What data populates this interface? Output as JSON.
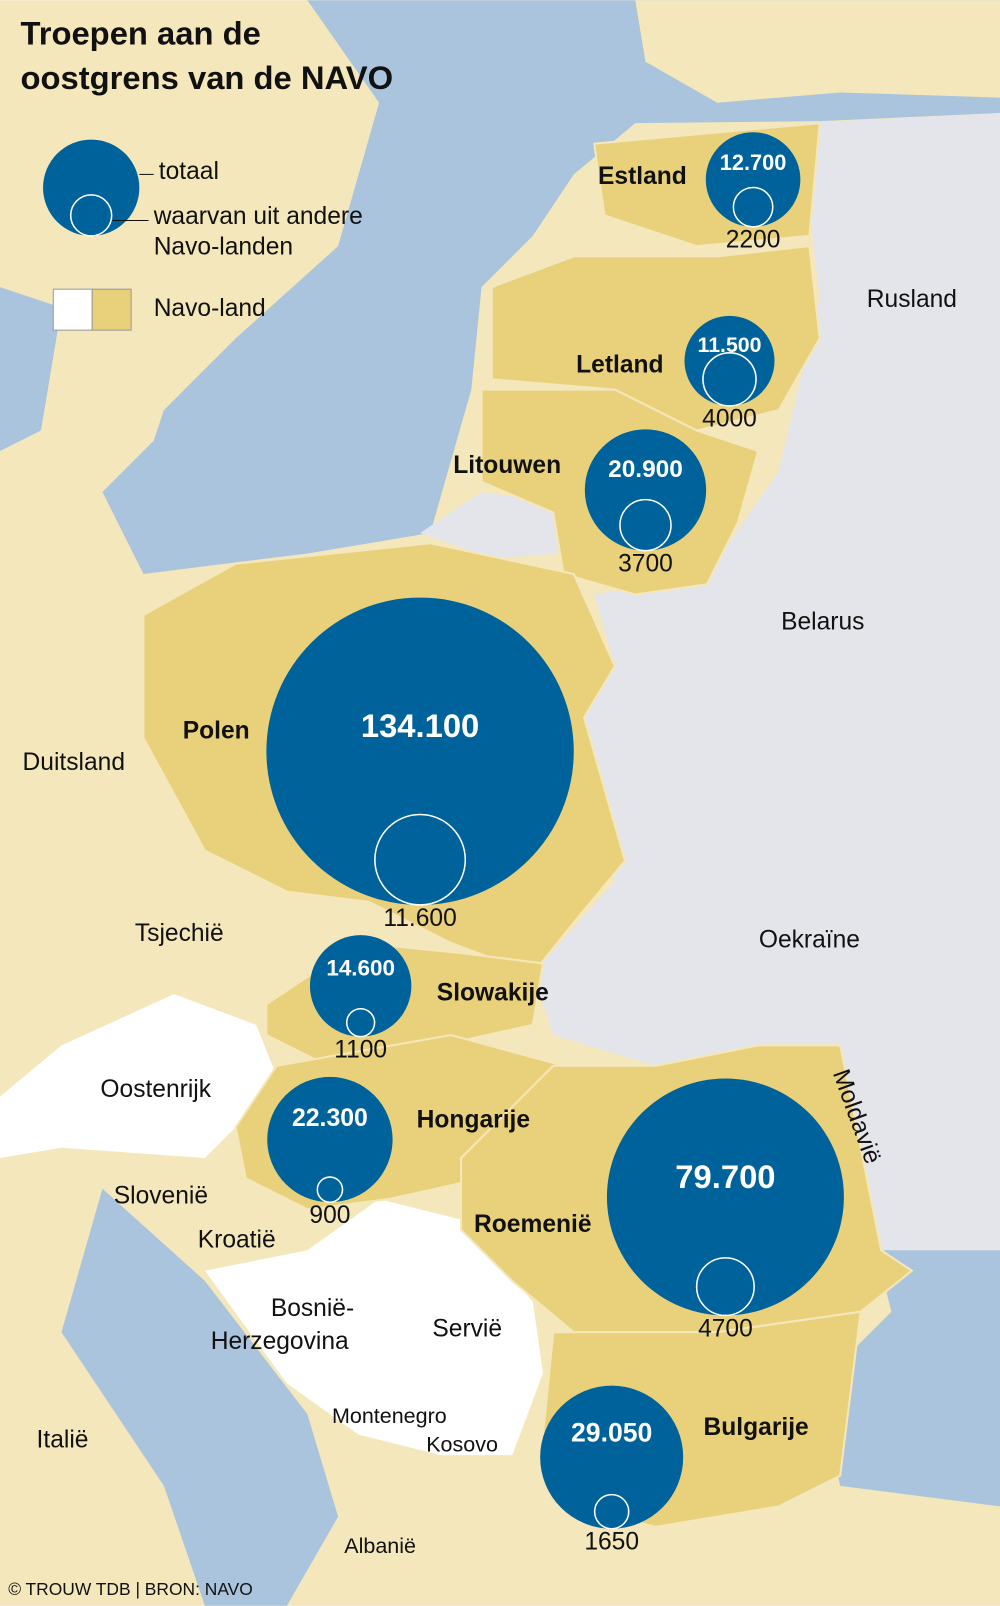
{
  "title": [
    "Troepen aan de",
    "oostgrens van de NAVO"
  ],
  "legend": {
    "total": "totaal",
    "other": [
      "waarvan uit andere",
      "Navo-landen"
    ],
    "member": "Navo-land"
  },
  "countries": [
    {
      "name": "Estland",
      "total": 12700,
      "total_label": "12.700",
      "other": 2200
    },
    {
      "name": "Letland",
      "total": 11500,
      "total_label": "11.500",
      "other": 4000
    },
    {
      "name": "Litouwen",
      "total": 20900,
      "total_label": "20.900",
      "other": 3700
    },
    {
      "name": "Polen",
      "total": 134100,
      "total_label": "134.100",
      "other": 11600,
      "other_label": "11.600"
    },
    {
      "name": "Slowakije",
      "total": 14600,
      "total_label": "14.600",
      "other": 1100
    },
    {
      "name": "Hongarije",
      "total": 22300,
      "total_label": "22.300",
      "other": 900
    },
    {
      "name": "Roemenië",
      "total": 79700,
      "total_label": "79.700",
      "other": 4700
    },
    {
      "name": "Bulgarije",
      "total": 29050,
      "total_label": "29.050",
      "other": 1650
    }
  ],
  "other_countries": [
    {
      "name": [
        "Rusland"
      ]
    },
    {
      "name": [
        "Belarus"
      ]
    },
    {
      "name": [
        "Duitsland"
      ]
    },
    {
      "name": [
        "Tsjechië"
      ]
    },
    {
      "name": [
        "Oekraïne"
      ]
    },
    {
      "name": [
        "Oostenrijk"
      ]
    },
    {
      "name": [
        "Moldavië"
      ]
    },
    {
      "name": [
        "Slovenië"
      ]
    },
    {
      "name": [
        "Kroatië"
      ]
    },
    {
      "name": [
        "Bosnië-",
        "Herzegovina"
      ]
    },
    {
      "name": [
        "Servië"
      ]
    },
    {
      "name": [
        "Italië"
      ]
    },
    {
      "name": [
        "Montenegro"
      ]
    },
    {
      "name": [
        "Kosovo"
      ]
    },
    {
      "name": [
        "Albanië"
      ]
    }
  ],
  "source": "© TROUW TDB | BRON: NAVO"
}
